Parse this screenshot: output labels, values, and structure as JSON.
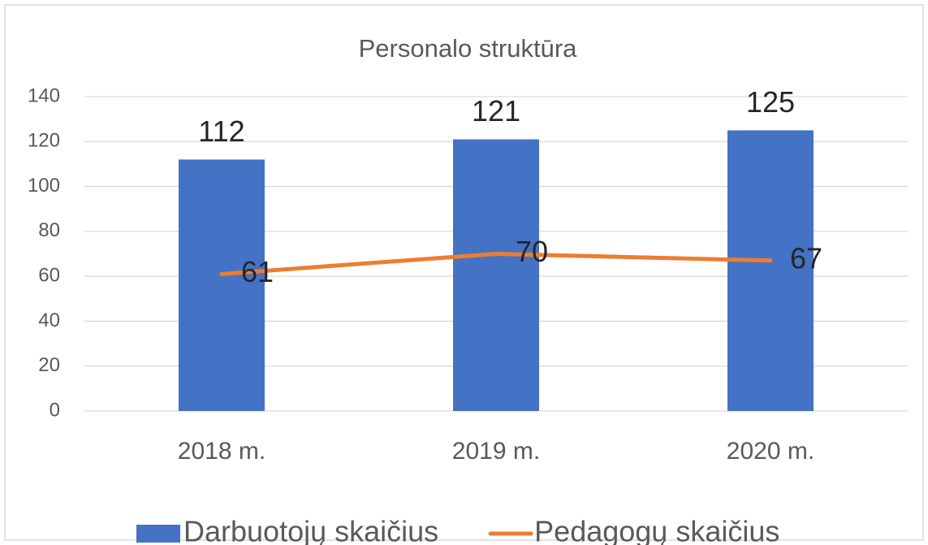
{
  "chart_data": {
    "type": "bar",
    "title": "Personalo struktūra",
    "categories": [
      "2018 m.",
      "2019 m.",
      "2020 m."
    ],
    "series": [
      {
        "name": "Darbuotojų skaičius",
        "type": "bar",
        "color": "#4472c4",
        "values": [
          112,
          121,
          125
        ]
      },
      {
        "name": "Pedagogų skaičius",
        "type": "line",
        "color": "#ed7d31",
        "values": [
          61,
          70,
          67
        ]
      }
    ],
    "ylim": [
      0,
      140
    ],
    "yticks": [
      0,
      20,
      40,
      60,
      80,
      100,
      120,
      140
    ],
    "grid": true,
    "legend": "bottom"
  }
}
